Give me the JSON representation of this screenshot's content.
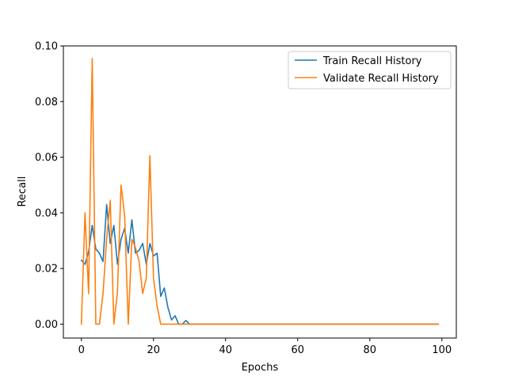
{
  "chart_data": {
    "type": "line",
    "title": "",
    "xlabel": "Epochs",
    "ylabel": "Recall",
    "xlim": [
      -5,
      104
    ],
    "ylim": [
      -0.005,
      0.1
    ],
    "xticks": [
      0,
      20,
      40,
      60,
      80,
      100
    ],
    "xtick_labels": [
      "0",
      "20",
      "40",
      "60",
      "80",
      "100"
    ],
    "yticks": [
      0.0,
      0.02,
      0.04,
      0.06,
      0.08,
      0.1
    ],
    "ytick_labels": [
      "0.00",
      "0.02",
      "0.04",
      "0.06",
      "0.08",
      "0.10"
    ],
    "grid": false,
    "legend_position": "top-right",
    "series": [
      {
        "name": "Train Recall History",
        "color": "#1f77b4",
        "points": [
          [
            0,
            0.023
          ],
          [
            1,
            0.0215
          ],
          [
            2,
            0.026
          ],
          [
            3,
            0.0355
          ],
          [
            4,
            0.027
          ],
          [
            5,
            0.0255
          ],
          [
            6,
            0.0225
          ],
          [
            7,
            0.043
          ],
          [
            8,
            0.029
          ],
          [
            9,
            0.0355
          ],
          [
            10,
            0.0215
          ],
          [
            11,
            0.0305
          ],
          [
            12,
            0.0345
          ],
          [
            13,
            0.0255
          ],
          [
            14,
            0.0375
          ],
          [
            15,
            0.0255
          ],
          [
            16,
            0.0265
          ],
          [
            17,
            0.029
          ],
          [
            18,
            0.0215
          ],
          [
            19,
            0.029
          ],
          [
            20,
            0.0245
          ],
          [
            21,
            0.0255
          ],
          [
            22,
            0.01
          ],
          [
            23,
            0.013
          ],
          [
            24,
            0.006
          ],
          [
            25,
            0.0015
          ],
          [
            26,
            0.003
          ],
          [
            27,
            0.0
          ],
          [
            28,
            0.0
          ],
          [
            29,
            0.0013
          ],
          [
            30,
            0.0
          ],
          [
            99,
            0.0
          ]
        ]
      },
      {
        "name": "Validate Recall History",
        "color": "#ff7f0e",
        "points": [
          [
            0,
            0.0
          ],
          [
            1,
            0.04
          ],
          [
            2,
            0.011
          ],
          [
            3,
            0.0955
          ],
          [
            4,
            0.0
          ],
          [
            5,
            0.0
          ],
          [
            6,
            0.011
          ],
          [
            7,
            0.0305
          ],
          [
            8,
            0.0445
          ],
          [
            9,
            0.0
          ],
          [
            10,
            0.0115
          ],
          [
            11,
            0.05
          ],
          [
            12,
            0.039
          ],
          [
            13,
            0.0
          ],
          [
            14,
            0.0305
          ],
          [
            15,
            0.0275
          ],
          [
            16,
            0.0225
          ],
          [
            17,
            0.011
          ],
          [
            18,
            0.0165
          ],
          [
            19,
            0.0605
          ],
          [
            20,
            0.0165
          ],
          [
            21,
            0.0065
          ],
          [
            22,
            0.0
          ],
          [
            23,
            0.0
          ],
          [
            99,
            0.0
          ]
        ]
      }
    ]
  }
}
